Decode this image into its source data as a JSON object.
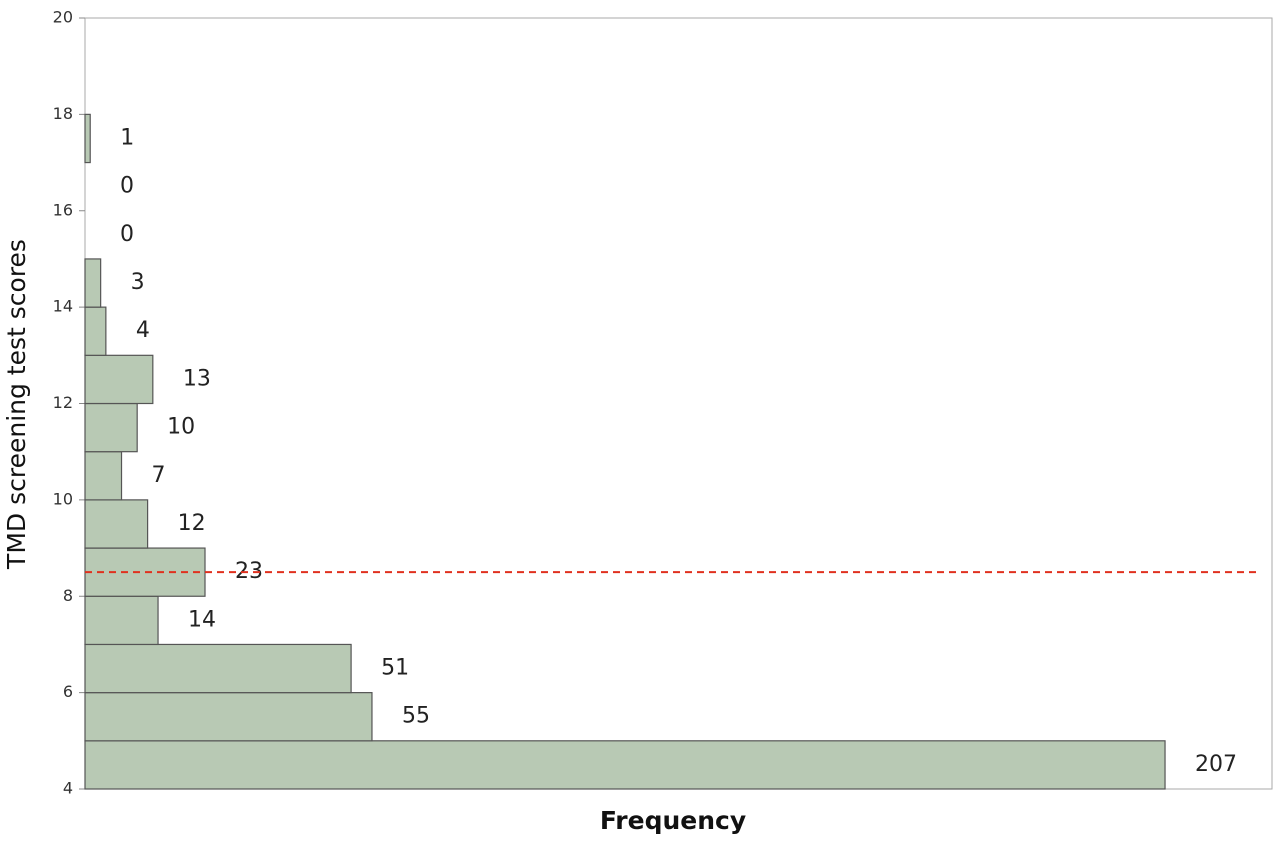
{
  "chart_data": {
    "type": "histogram",
    "orientation": "horizontal",
    "x_label": "Frequency",
    "y_label": "TMD screening test scores",
    "bins": [
      4,
      5,
      6,
      7,
      8,
      9,
      10,
      11,
      12,
      13,
      14,
      15,
      16,
      17,
      18
    ],
    "values": [
      207,
      55,
      51,
      14,
      23,
      12,
      7,
      10,
      13,
      4,
      3,
      0,
      0,
      1
    ],
    "color": "#b8c9b4",
    "xlim": [
      0,
      227.5
    ],
    "ylim": [
      4,
      20
    ],
    "yticks": [
      4,
      6,
      8,
      10,
      12,
      14,
      16,
      18,
      20
    ],
    "reference_line": {
      "value": 8.5,
      "color": "#e0301e"
    }
  }
}
